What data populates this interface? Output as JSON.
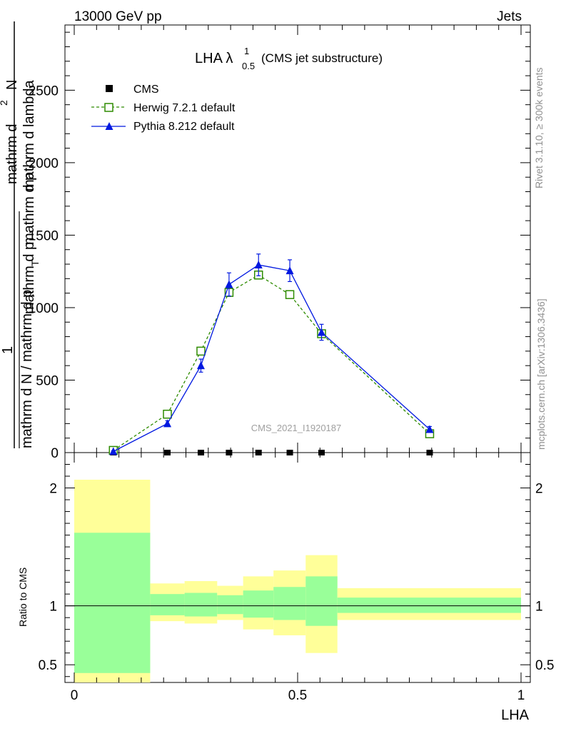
{
  "header": {
    "left": "13000 GeV pp",
    "right": "Jets"
  },
  "side_labels": {
    "rivet": "Rivet 3.1.10, ≥ 300k events",
    "site": "mcplots.cern.ch [arXiv:1306.3436]"
  },
  "watermark": "CMS_2021_I1920187",
  "chart_data": [
    {
      "type": "line",
      "panel": "main",
      "title": "LHA λ",
      "title_sup": "1",
      "title_sub": "0.5",
      "title_suffix": "(CMS jet substructure)",
      "ylabel_numerator": "mathrm d^2N",
      "ylabel_left": "1",
      "ylabel_denominator": "mathrm d N / mathrm d p_T mathrm d p_T mathrm d lambda",
      "ylabel_parts": {
        "top_1": "mathrm d",
        "top_2": "N",
        "stack_1": "mathrm d p",
        "stack_2": "mathrm d p",
        "stack_T": "T",
        "stack_3": "mathrm d lambda",
        "one": "1",
        "bottom": "mathrm d N / mathrm d p"
      },
      "xlim": [
        0,
        1
      ],
      "ylim": [
        0,
        2950
      ],
      "yticks": [
        0,
        500,
        1000,
        1500,
        2000,
        2500
      ],
      "ytick_labels": [
        "0",
        "500",
        "1000",
        "1500",
        "2000",
        "2500"
      ],
      "legend_position": "top-left",
      "series": [
        {
          "name": "CMS",
          "color": "#000000",
          "marker": "square-filled",
          "x": [
            0.0875,
            0.2085,
            0.2835,
            0.3465,
            0.4125,
            0.4825,
            0.5535,
            0.7955
          ],
          "y": [
            0,
            0,
            0,
            0,
            0,
            0,
            0,
            0
          ]
        },
        {
          "name": "Herwig 7.2.1 default",
          "color": "#2e8b00",
          "marker": "square-open",
          "line": "dashed",
          "x": [
            0.0875,
            0.2085,
            0.2835,
            0.3465,
            0.4125,
            0.4825,
            0.5535,
            0.7955
          ],
          "y": [
            15,
            265,
            700,
            1105,
            1225,
            1090,
            820,
            130
          ]
        },
        {
          "name": "Pythia 8.212 default",
          "color": "#0018e0",
          "marker": "triangle-filled",
          "line": "solid",
          "x": [
            0.0875,
            0.2085,
            0.2835,
            0.3465,
            0.4125,
            0.4825,
            0.5535,
            0.7955
          ],
          "y": [
            8,
            200,
            600,
            1160,
            1295,
            1255,
            830,
            160
          ],
          "yerr": [
            5,
            20,
            45,
            80,
            75,
            75,
            55,
            20
          ]
        }
      ]
    },
    {
      "type": "area",
      "panel": "ratio",
      "ylabel": "Ratio to CMS",
      "xlabel": "LHA",
      "xlim": [
        0,
        1
      ],
      "ylim": [
        0.35,
        2.3
      ],
      "ytick_labels": [
        "0.5",
        "1",
        "2"
      ],
      "yticks": [
        0.5,
        1,
        2
      ],
      "xtick_labels": [
        "0",
        "0.5",
        "1"
      ],
      "xticks": [
        0,
        0.5,
        1
      ],
      "reference": 1,
      "bins": [
        {
          "lo": 0.0,
          "hi": 0.17,
          "stat_lo": 0.43,
          "stat_hi": 1.62,
          "tot_lo": 0.35,
          "tot_hi": 2.07
        },
        {
          "lo": 0.17,
          "hi": 0.247,
          "stat_lo": 0.92,
          "stat_hi": 1.1,
          "tot_lo": 0.87,
          "tot_hi": 1.19
        },
        {
          "lo": 0.247,
          "hi": 0.32,
          "stat_lo": 0.91,
          "stat_hi": 1.11,
          "tot_lo": 0.85,
          "tot_hi": 1.21
        },
        {
          "lo": 0.32,
          "hi": 0.378,
          "stat_lo": 0.93,
          "stat_hi": 1.09,
          "tot_lo": 0.88,
          "tot_hi": 1.17
        },
        {
          "lo": 0.378,
          "hi": 0.446,
          "stat_lo": 0.9,
          "stat_hi": 1.13,
          "tot_lo": 0.8,
          "tot_hi": 1.25
        },
        {
          "lo": 0.446,
          "hi": 0.518,
          "stat_lo": 0.88,
          "stat_hi": 1.16,
          "tot_lo": 0.75,
          "tot_hi": 1.3
        },
        {
          "lo": 0.518,
          "hi": 0.589,
          "stat_lo": 0.83,
          "stat_hi": 1.25,
          "tot_lo": 0.6,
          "tot_hi": 1.43
        },
        {
          "lo": 0.589,
          "hi": 1.0,
          "stat_lo": 0.94,
          "stat_hi": 1.07,
          "tot_lo": 0.88,
          "tot_hi": 1.15
        }
      ],
      "colors": {
        "stat": "#99ff99",
        "total": "#ffff99",
        "reference_line": "#000000"
      }
    }
  ]
}
